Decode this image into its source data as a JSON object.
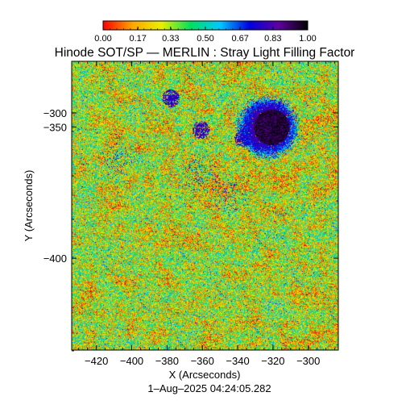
{
  "chart_data": {
    "type": "heatmap",
    "title": "Hinode SOT/SP — MERLIN : Stray Light Filling Factor",
    "xlabel": "X (Arcseconds)",
    "ylabel": "Y (Arcseconds)",
    "timestamp": "1–Aug–2025 04:24:05.282",
    "xlim": [
      -434,
      -283
    ],
    "ylim": [
      -435,
      -325
    ],
    "x_ticks": [
      {
        "value": -420,
        "label": "−420"
      },
      {
        "value": -400,
        "label": "−400"
      },
      {
        "value": -380,
        "label": "−380"
      },
      {
        "value": -360,
        "label": "−360"
      },
      {
        "value": -340,
        "label": "−340"
      },
      {
        "value": -320,
        "label": "−320"
      },
      {
        "value": -300,
        "label": "−300"
      }
    ],
    "y_ticks": [
      {
        "value": -300,
        "label": "−300"
      },
      {
        "value": -350,
        "label": "−350"
      },
      {
        "value": -400,
        "label": "−400"
      }
    ],
    "colorbar": {
      "range": [
        0,
        1
      ],
      "ticks": [
        {
          "value": 0.0,
          "label": "0.00"
        },
        {
          "value": 0.17,
          "label": "0.17"
        },
        {
          "value": 0.33,
          "label": "0.33"
        },
        {
          "value": 0.5,
          "label": "0.50"
        },
        {
          "value": 0.67,
          "label": "0.67"
        },
        {
          "value": 0.83,
          "label": "0.83"
        },
        {
          "value": 1.0,
          "label": "1.00"
        }
      ],
      "colors": [
        "#ff0000",
        "#ffa500",
        "#e8f000",
        "#00e060",
        "#00c8ff",
        "#0000e0",
        "#6000a0",
        "#000000"
      ],
      "position": "top"
    },
    "background_level": 0.3,
    "features": [
      {
        "kind": "sunspot-umbra",
        "x": -321,
        "y": -350,
        "value": 0.95
      },
      {
        "kind": "sunspot-penumbra",
        "x": -323,
        "y": -350,
        "value": 0.82
      },
      {
        "kind": "pore",
        "x": -378,
        "y": -339,
        "value": 0.78
      },
      {
        "kind": "pore",
        "x": -361,
        "y": -351,
        "value": 0.8
      },
      {
        "kind": "pore",
        "x": -337,
        "y": -354,
        "value": 0.75
      },
      {
        "kind": "plage",
        "x": -362,
        "y": -368,
        "value": 0.62
      },
      {
        "kind": "plage",
        "x": -345,
        "y": -375,
        "value": 0.6
      },
      {
        "kind": "plage",
        "x": -408,
        "y": -362,
        "value": 0.58
      }
    ]
  }
}
